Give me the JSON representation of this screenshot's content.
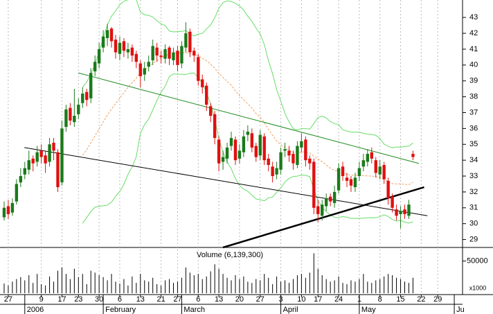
{
  "chart_data": [
    {
      "type": "candlestick",
      "xlim": [
        -1,
        111
      ],
      "ylim": [
        28.5,
        44.1
      ],
      "yticks": [
        29,
        30,
        31,
        32,
        33,
        34,
        35,
        36,
        37,
        38,
        39,
        40,
        41,
        42,
        43
      ],
      "xticks": [
        {
          "value": 1,
          "label": "27"
        },
        {
          "value": 9,
          "label": "9"
        },
        {
          "value": 14,
          "label": "17"
        },
        {
          "value": 18,
          "label": "23"
        },
        {
          "value": 23,
          "label": "30"
        },
        {
          "value": 28,
          "label": "6"
        },
        {
          "value": 33,
          "label": "13"
        },
        {
          "value": 38,
          "label": "21"
        },
        {
          "value": 42,
          "label": "27"
        },
        {
          "value": 47,
          "label": "6"
        },
        {
          "value": 52,
          "label": "13"
        },
        {
          "value": 57,
          "label": "20"
        },
        {
          "value": 62,
          "label": "27"
        },
        {
          "value": 67,
          "label": "3"
        },
        {
          "value": 72,
          "label": "10"
        },
        {
          "value": 76,
          "label": "17"
        },
        {
          "value": 81,
          "label": "24"
        },
        {
          "value": 86,
          "label": "1"
        },
        {
          "value": 91,
          "label": "8"
        },
        {
          "value": 96,
          "label": "15"
        },
        {
          "value": 101,
          "label": "22"
        },
        {
          "value": 105,
          "label": "29"
        }
      ],
      "month_ticks": [
        {
          "value": 5,
          "label": "2006"
        },
        {
          "value": 24,
          "label": "February"
        },
        {
          "value": 43,
          "label": "March"
        },
        {
          "value": 67,
          "label": "April"
        },
        {
          "value": 86,
          "label": "May"
        },
        {
          "value": 109,
          "label": "Ju"
        }
      ],
      "up_color": "#1a7a1a",
      "down_color": "#e01010",
      "open": [
        30.4,
        31.1,
        30.7,
        31.4,
        32.6,
        33.1,
        33.4,
        34.1,
        33.9,
        34.6,
        34.3,
        33.9,
        35.1,
        34.5,
        32.6,
        36.1,
        37.3,
        36.4,
        36.9,
        37.6,
        38.3,
        37.9,
        39.6,
        40.1,
        41.1,
        41.7,
        42.3,
        41.6,
        40.7,
        41.5,
        40.8,
        41.1,
        40.7,
        40.1,
        39.4,
        39.9,
        40.3,
        41.1,
        40.6,
        40.4,
        41.1,
        40.3,
        40.9,
        40.1,
        41.1,
        42.1,
        40.9,
        40.5,
        39.1,
        38.7,
        37.4,
        36.9,
        35.3,
        33.9,
        34.1,
        34.9,
        35.3,
        34.1,
        34.5,
        35.6,
        35.7,
        34.9,
        34.3,
        35.5,
        34.1,
        33.6,
        33.1,
        33.4,
        34.6,
        34.6,
        34.4,
        33.7,
        34.8,
        35.3,
        34.1,
        33.9,
        31.1,
        30.5,
        31.1,
        31.7,
        31.3,
        32.1,
        33.6,
        32.9,
        32.8,
        32.3,
        33.0,
        33.6,
        33.9,
        34.5,
        34.0,
        33.1,
        33.7,
        32.7,
        31.7,
        30.9,
        30.6,
        30.9,
        30.5,
        34.4
      ],
      "high": [
        31.4,
        31.5,
        31.6,
        32.8,
        33.5,
        33.9,
        34.6,
        34.3,
        34.9,
        35.0,
        34.6,
        35.4,
        35.4,
        34.7,
        36.5,
        37.5,
        37.6,
        38.5,
        37.9,
        38.6,
        38.5,
        39.8,
        40.6,
        41.4,
        42.2,
        42.6,
        42.4,
        41.9,
        41.8,
        41.7,
        41.4,
        41.3,
        40.9,
        40.3,
        40.2,
        40.6,
        41.6,
        41.4,
        40.9,
        41.3,
        41.2,
        41.1,
        41.2,
        41.5,
        42.7,
        42.3,
        41.1,
        40.7,
        39.4,
        38.9,
        37.6,
        37.1,
        35.5,
        34.6,
        35.1,
        35.8,
        35.5,
        35.0,
        35.9,
        36.2,
        36.0,
        35.1,
        35.9,
        35.7,
        34.4,
        33.9,
        33.9,
        34.8,
        35.1,
        34.9,
        34.6,
        35.2,
        35.7,
        35.5,
        34.3,
        34.1,
        31.5,
        31.5,
        31.9,
        31.9,
        32.4,
        33.8,
        33.9,
        33.2,
        33.0,
        33.2,
        33.9,
        34.4,
        34.7,
        34.8,
        34.2,
        34.0,
        33.9,
        32.9,
        31.9,
        31.2,
        31.1,
        31.2,
        31.5,
        34.6
      ],
      "low": [
        30.2,
        30.3,
        30.5,
        31.2,
        32.3,
        32.8,
        33.1,
        33.3,
        33.6,
        33.8,
        33.2,
        33.6,
        34.0,
        32.0,
        32.4,
        35.8,
        36.2,
        36.1,
        36.6,
        37.3,
        37.4,
        37.6,
        39.3,
        39.8,
        40.8,
        41.2,
        41.1,
        40.4,
        40.3,
        40.5,
        40.4,
        40.2,
        39.8,
        38.6,
        39.0,
        39.6,
        40.0,
        40.2,
        40.1,
        40.1,
        40.0,
        40.0,
        39.6,
        39.8,
        40.8,
        40.5,
        40.2,
        38.7,
        38.2,
        37.1,
        36.4,
        35.0,
        33.3,
        33.4,
        33.8,
        34.6,
        33.7,
        33.8,
        34.2,
        35.2,
        34.5,
        33.9,
        34.0,
        33.7,
        33.3,
        32.6,
        32.8,
        33.1,
        34.2,
        33.9,
        33.4,
        33.5,
        34.5,
        33.6,
        33.4,
        30.6,
        30.1,
        30.2,
        30.8,
        31.1,
        31.0,
        31.9,
        32.7,
        32.3,
        32.0,
        32.0,
        32.7,
        33.3,
        33.6,
        33.8,
        32.9,
        32.8,
        32.5,
        31.2,
        30.7,
        30.2,
        29.7,
        30.3,
        30.3,
        34.0
      ],
      "close": [
        31.0,
        30.6,
        31.3,
        32.5,
        33.0,
        33.5,
        34.0,
        33.8,
        34.5,
        34.2,
        33.8,
        35.0,
        34.6,
        32.3,
        36.0,
        37.2,
        36.5,
        36.8,
        37.5,
        38.2,
        37.8,
        39.5,
        40.2,
        41.0,
        41.8,
        42.2,
        41.5,
        40.8,
        41.4,
        40.9,
        41.0,
        40.6,
        40.2,
        39.3,
        39.8,
        40.2,
        41.2,
        40.6,
        40.5,
        41.0,
        40.4,
        40.8,
        40.0,
        41.2,
        42.0,
        40.8,
        40.6,
        39.0,
        38.6,
        37.5,
        36.8,
        35.4,
        33.8,
        34.2,
        34.8,
        35.4,
        34.0,
        34.6,
        35.5,
        35.8,
        34.8,
        34.2,
        35.6,
        34.0,
        33.7,
        33.0,
        33.5,
        34.5,
        34.7,
        34.3,
        33.8,
        34.9,
        35.2,
        34.0,
        33.8,
        31.0,
        30.6,
        31.2,
        31.6,
        31.4,
        32.0,
        33.5,
        33.0,
        32.7,
        32.4,
        32.9,
        33.5,
        34.0,
        34.4,
        34.1,
        33.2,
        33.6,
        32.8,
        31.6,
        31.0,
        30.5,
        30.8,
        30.6,
        31.2,
        34.2
      ],
      "trendlines": [
        {
          "x": [
            18,
            100.4
          ],
          "y": [
            39.5,
            33.8
          ],
          "color": "#1a8a1a",
          "width": 1
        },
        {
          "x": [
            4.9,
            102.5
          ],
          "y": [
            34.8,
            30.5
          ],
          "color": "#000000",
          "width": 1
        },
        {
          "x": [
            53,
            101.7
          ],
          "y": [
            28.5,
            32.3
          ],
          "color": "#000000",
          "width": 2.5
        }
      ]
    },
    {
      "type": "bar",
      "title": "Volume (6,139,300)",
      "unit_label": "x1000",
      "color": "#000000",
      "ylim": [
        0,
        70000
      ],
      "yticks": [
        50000
      ],
      "values": [
        15000,
        12000,
        18000,
        22000,
        25000,
        20000,
        28000,
        16000,
        30000,
        14000,
        12000,
        26000,
        18000,
        35000,
        40000,
        30000,
        22000,
        38000,
        25000,
        30000,
        14000,
        35000,
        32000,
        28000,
        25000,
        20000,
        30000,
        18000,
        15000,
        22000,
        12000,
        26000,
        16000,
        30000,
        20000,
        18000,
        24000,
        14000,
        12000,
        20000,
        22000,
        16000,
        18000,
        24000,
        40000,
        32000,
        28000,
        30000,
        22000,
        26000,
        34000,
        45000,
        38000,
        30000,
        24000,
        20000,
        28000,
        22000,
        26000,
        18000,
        16000,
        22000,
        20000,
        30000,
        24000,
        14000,
        26000,
        18000,
        20000,
        16000,
        22000,
        28000,
        30000,
        24000,
        32000,
        62000,
        38000,
        28000,
        22000,
        18000,
        20000,
        26000,
        16000,
        14000,
        20000,
        18000,
        22000,
        30000,
        18000,
        16000,
        20000,
        22000,
        26000,
        30000,
        28000,
        24000,
        22000,
        18000,
        16000,
        24000
      ]
    }
  ]
}
